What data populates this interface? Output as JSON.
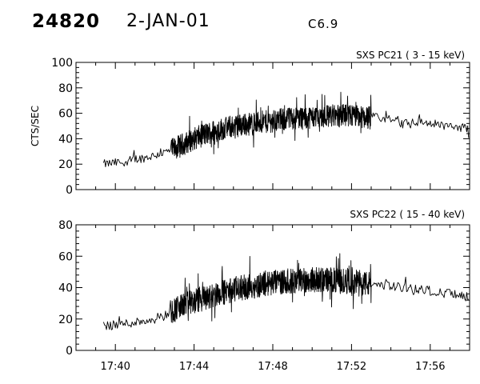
{
  "header": {
    "event_id": "24820",
    "date": "2-JAN-01",
    "flare_class": "C6.9"
  },
  "chart_data": [
    {
      "type": "line",
      "title": "SXS PC21  (  3 - 15 keV)",
      "ylabel": "CTS/SEC",
      "xlabel": "",
      "xlim": [
        "17:38:00",
        "17:58:00"
      ],
      "ylim": [
        0,
        100
      ],
      "yticks": [
        0,
        20,
        40,
        60,
        80,
        100
      ],
      "xticks": [
        "17:40",
        "17:44",
        "17:48",
        "17:52",
        "17:56"
      ],
      "grid": false,
      "x_units": "minutes after 17:00",
      "envelope": {
        "x": [
          39.4,
          40.0,
          40.5,
          41.0,
          41.5,
          42.0,
          42.5,
          43.0,
          43.5,
          44.0,
          44.5,
          45.0,
          45.5,
          46.0,
          46.5,
          47.0,
          47.5,
          48.0,
          48.5,
          49.0,
          49.5,
          50.0,
          50.5,
          51.0,
          51.5,
          52.0,
          52.5,
          53.0,
          53.5,
          54.0,
          54.5,
          55.0,
          55.5,
          56.0,
          56.5,
          57.0,
          57.5,
          58.0
        ],
        "y": [
          20,
          21,
          22,
          24,
          25,
          27,
          29,
          32,
          36,
          40,
          43,
          46,
          48,
          50,
          51,
          52,
          53,
          54,
          55,
          56,
          57,
          57,
          58,
          58,
          58,
          58,
          57,
          57,
          56,
          55,
          54,
          53,
          53,
          52,
          51,
          50,
          49,
          48
        ]
      },
      "dense_interval": [
        "17:42:48",
        "17:53:00"
      ]
    },
    {
      "type": "line",
      "title": "SXS PC22  ( 15 - 40 keV)",
      "ylabel": "",
      "xlabel": "",
      "xlim": [
        "17:38:00",
        "17:58:00"
      ],
      "ylim": [
        0,
        80
      ],
      "yticks": [
        0,
        20,
        40,
        60,
        80
      ],
      "xticks": [
        "17:40",
        "17:44",
        "17:48",
        "17:52",
        "17:56"
      ],
      "grid": false,
      "x_units": "minutes after 17:00",
      "envelope": {
        "x": [
          39.4,
          40.0,
          40.5,
          41.0,
          41.5,
          42.0,
          42.5,
          43.0,
          43.5,
          44.0,
          44.5,
          45.0,
          45.5,
          46.0,
          46.5,
          47.0,
          47.5,
          48.0,
          48.5,
          49.0,
          49.5,
          50.0,
          50.5,
          51.0,
          51.5,
          52.0,
          52.5,
          53.0,
          53.5,
          54.0,
          54.5,
          55.0,
          55.5,
          56.0,
          56.5,
          57.0,
          57.5,
          58.0
        ],
        "y": [
          16,
          16,
          17,
          18,
          19,
          20,
          22,
          26,
          29,
          31,
          33,
          35,
          37,
          39,
          40,
          41,
          42,
          43,
          44,
          44,
          45,
          45,
          45,
          45,
          44,
          44,
          43,
          42,
          42,
          41,
          40,
          40,
          39,
          38,
          37,
          36,
          35,
          34
        ]
      },
      "dense_interval": [
        "17:42:48",
        "17:53:00"
      ]
    }
  ]
}
